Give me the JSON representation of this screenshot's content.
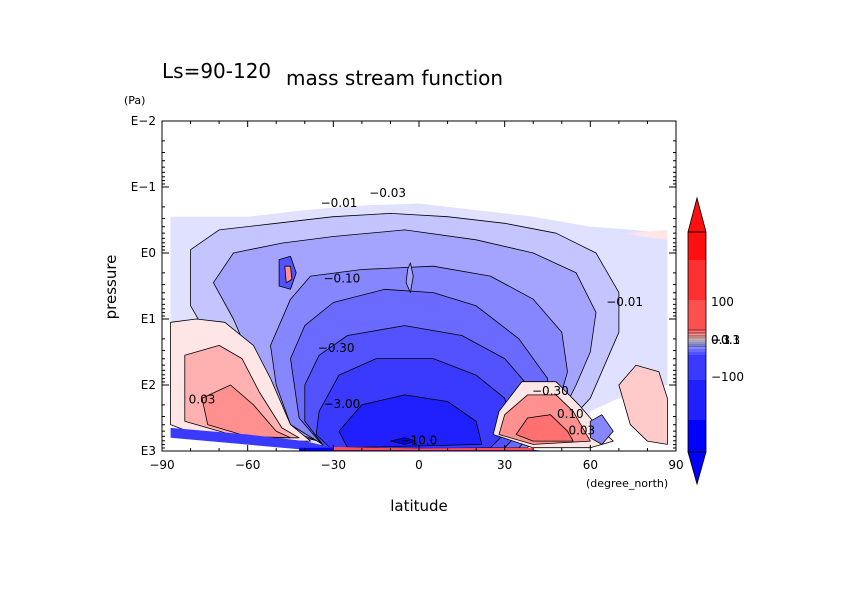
{
  "chart_data": {
    "type": "contour",
    "title": "mass stream function",
    "subtitle": "Ls=90-120",
    "xlabel": "latitude",
    "x_units": "(degree_north)",
    "ylabel": "pressure",
    "y_units": "(Pa)",
    "x_range": [
      -90,
      90
    ],
    "x_ticks": [
      -90,
      -60,
      -30,
      0,
      30,
      60,
      90
    ],
    "x_tick_labels": [
      "−90",
      "−60",
      "−30",
      "0",
      "30",
      "60",
      "90"
    ],
    "y_scale": "log10",
    "y_range_log10": [
      -2,
      3
    ],
    "y_ticks_log10": [
      -2,
      -1,
      0,
      1,
      2,
      3
    ],
    "y_tick_labels": [
      "E−2",
      "E−1",
      "E0",
      "E1",
      "E2",
      "E3"
    ],
    "y_inverted": true,
    "contour_labels": [
      {
        "text": "−0.01",
        "lat": -28,
        "logp": -0.7
      },
      {
        "text": "−0.03",
        "lat": -11,
        "logp": -0.85
      },
      {
        "text": "−0.10",
        "lat": -27,
        "logp": 0.45
      },
      {
        "text": "−0.30",
        "lat": -29,
        "logp": 1.5
      },
      {
        "text": "−3.00",
        "lat": -27,
        "logp": 2.35
      },
      {
        "text": "−10.0",
        "lat": 0,
        "logp": 2.9
      },
      {
        "text": "−0.30",
        "lat": 46,
        "logp": 2.15
      },
      {
        "text": "0.10",
        "lat": 53,
        "logp": 2.5
      },
      {
        "text": "0.03",
        "lat": 57,
        "logp": 2.75
      },
      {
        "text": "0.03",
        "lat": -76,
        "logp": 2.28
      },
      {
        "text": "−0.01",
        "lat": 72,
        "logp": 0.8
      }
    ],
    "colorbar": {
      "tick_labels": [
        "100",
        "0.3",
        "0.1",
        "−0.1",
        "−0.3",
        "−100"
      ],
      "negative_levels": [
        -100,
        -10,
        -3,
        -1,
        -0.3,
        -0.1,
        -0.03,
        -0.01
      ],
      "positive_levels": [
        0.01,
        0.03,
        0.1,
        0.3,
        1,
        3,
        10,
        100
      ],
      "colors": {
        "neg": [
          "#0000ff",
          "#2020ff",
          "#3a3aff",
          "#5252ff",
          "#6a6aff",
          "#8686ff",
          "#a4a4ff",
          "#c4c4ff",
          "#e0e0ff"
        ],
        "pos": [
          "#ffe6e6",
          "#ffcaca",
          "#ffb0b0",
          "#ff9090",
          "#ff7070",
          "#ff5050",
          "#ff3030",
          "#ff1010"
        ]
      }
    }
  }
}
